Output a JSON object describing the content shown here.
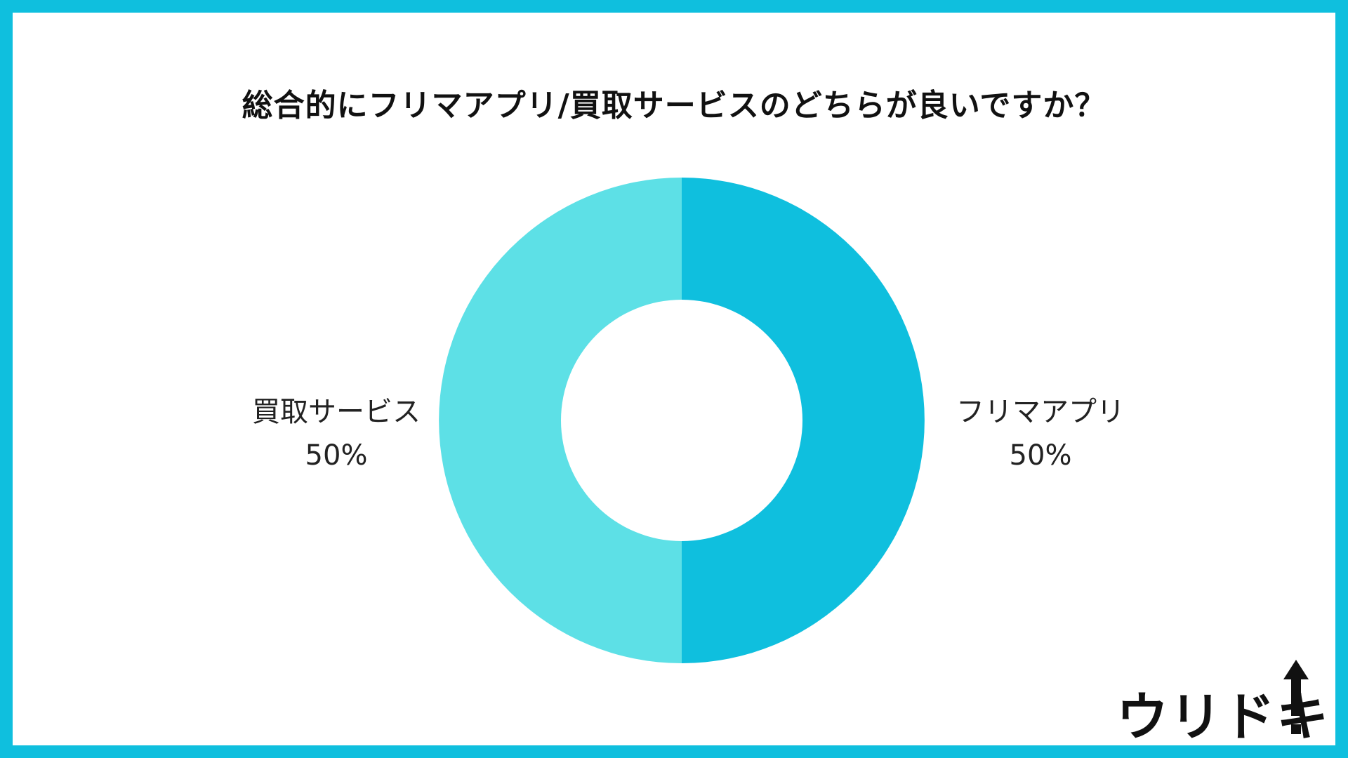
{
  "title": "総合的にフリマアプリ/買取サービスのどちらが良いですか？",
  "chart_data": {
    "type": "pie",
    "subtype": "donut",
    "title": "総合的にフリマアプリ/買取サービスのどちらが良いですか？",
    "slices": [
      {
        "label": "フリマアプリ",
        "value": 50,
        "value_label": "50%",
        "color": "#0fbfde"
      },
      {
        "label": "買取サービス",
        "value": 50,
        "value_label": "50%",
        "color": "#5de0e6"
      }
    ],
    "start_angle": "12 o'clock",
    "direction": "clockwise"
  },
  "colors": {
    "border": "#0fbfde",
    "background": "#ffffff",
    "slice_primary": "#0fbfde",
    "slice_secondary": "#5de0e6"
  },
  "logo": {
    "text": "ウリドキ",
    "icon": "up-arrow-icon"
  }
}
